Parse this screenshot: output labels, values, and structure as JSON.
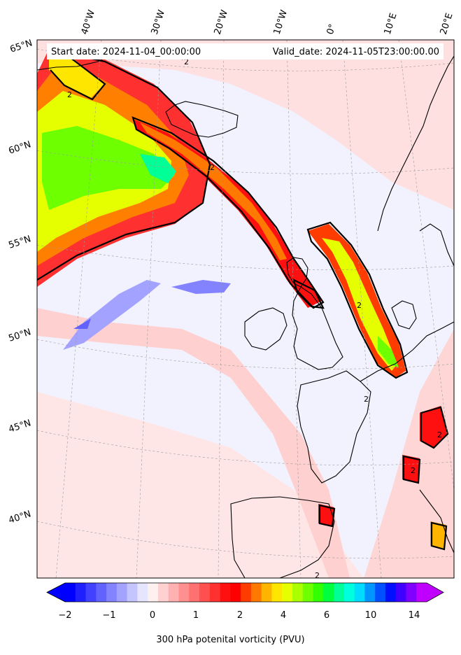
{
  "header": {
    "start_text": "Start date: 2024-11-04_00:00:00",
    "valid_text": "Valid_date: 2024-11-05T23:00:00.00"
  },
  "graticule": {
    "lon_labels": [
      "40°W",
      "30°W",
      "20°W",
      "10°W",
      "0°",
      "10°E",
      "20°E"
    ],
    "lat_labels": [
      "65°N",
      "60°N",
      "55°N",
      "50°N",
      "45°N",
      "40°N"
    ]
  },
  "contour_label": "2",
  "colorbar": {
    "ticks": [
      "−2",
      "−1",
      "0",
      "1",
      "2",
      "4",
      "6",
      "10",
      "14"
    ],
    "label": "300 hPa potenital vorticity (PVU)",
    "colors": [
      "#0000ff",
      "#2020ff",
      "#4141ff",
      "#6262ff",
      "#8383ff",
      "#a3a3ff",
      "#c4c4ff",
      "#e5e5ff",
      "#fff0f0",
      "#ffd0d0",
      "#ffb0b0",
      "#ff9090",
      "#ff7070",
      "#ff5050",
      "#ff3030",
      "#ff1010",
      "#ff0000",
      "#ff3c00",
      "#ff7800",
      "#ffb400",
      "#ffe600",
      "#e6ff00",
      "#aaff00",
      "#6eff00",
      "#32ff00",
      "#00ff3c",
      "#00ff96",
      "#00ffdc",
      "#00dcff",
      "#0096ff",
      "#0050ff",
      "#0010ff",
      "#4000ff",
      "#8000ff",
      "#c000ff"
    ]
  }
}
